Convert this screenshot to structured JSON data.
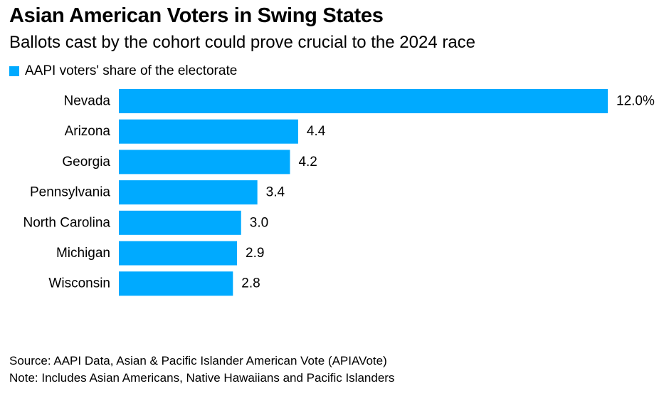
{
  "title": "Asian American Voters in Swing States",
  "subtitle": "Ballots cast by the cohort could prove crucial to the 2024 race",
  "legend": {
    "label": "AAPI voters' share of the electorate",
    "color": "#00aaff"
  },
  "chart_data": {
    "type": "bar",
    "orientation": "horizontal",
    "title": "Asian American Voters in Swing States",
    "xlabel": "",
    "ylabel": "",
    "xlim": [
      0,
      12
    ],
    "categories": [
      "Nevada",
      "Arizona",
      "Georgia",
      "Pennsylvania",
      "North Carolina",
      "Michigan",
      "Wisconsin"
    ],
    "series": [
      {
        "name": "AAPI voters' share of the electorate",
        "values": [
          12.0,
          4.4,
          4.2,
          3.4,
          3.0,
          2.9,
          2.8
        ],
        "labels": [
          "12.0%",
          "4.4",
          "4.2",
          "3.4",
          "3.0",
          "2.9",
          "2.8"
        ]
      }
    ]
  },
  "footer": {
    "source": "Source: AAPI Data, Asian & Pacific Islander American Vote (APIAVote)",
    "note": "Note: Includes Asian Americans, Native Hawaiians and Pacific Islanders"
  }
}
